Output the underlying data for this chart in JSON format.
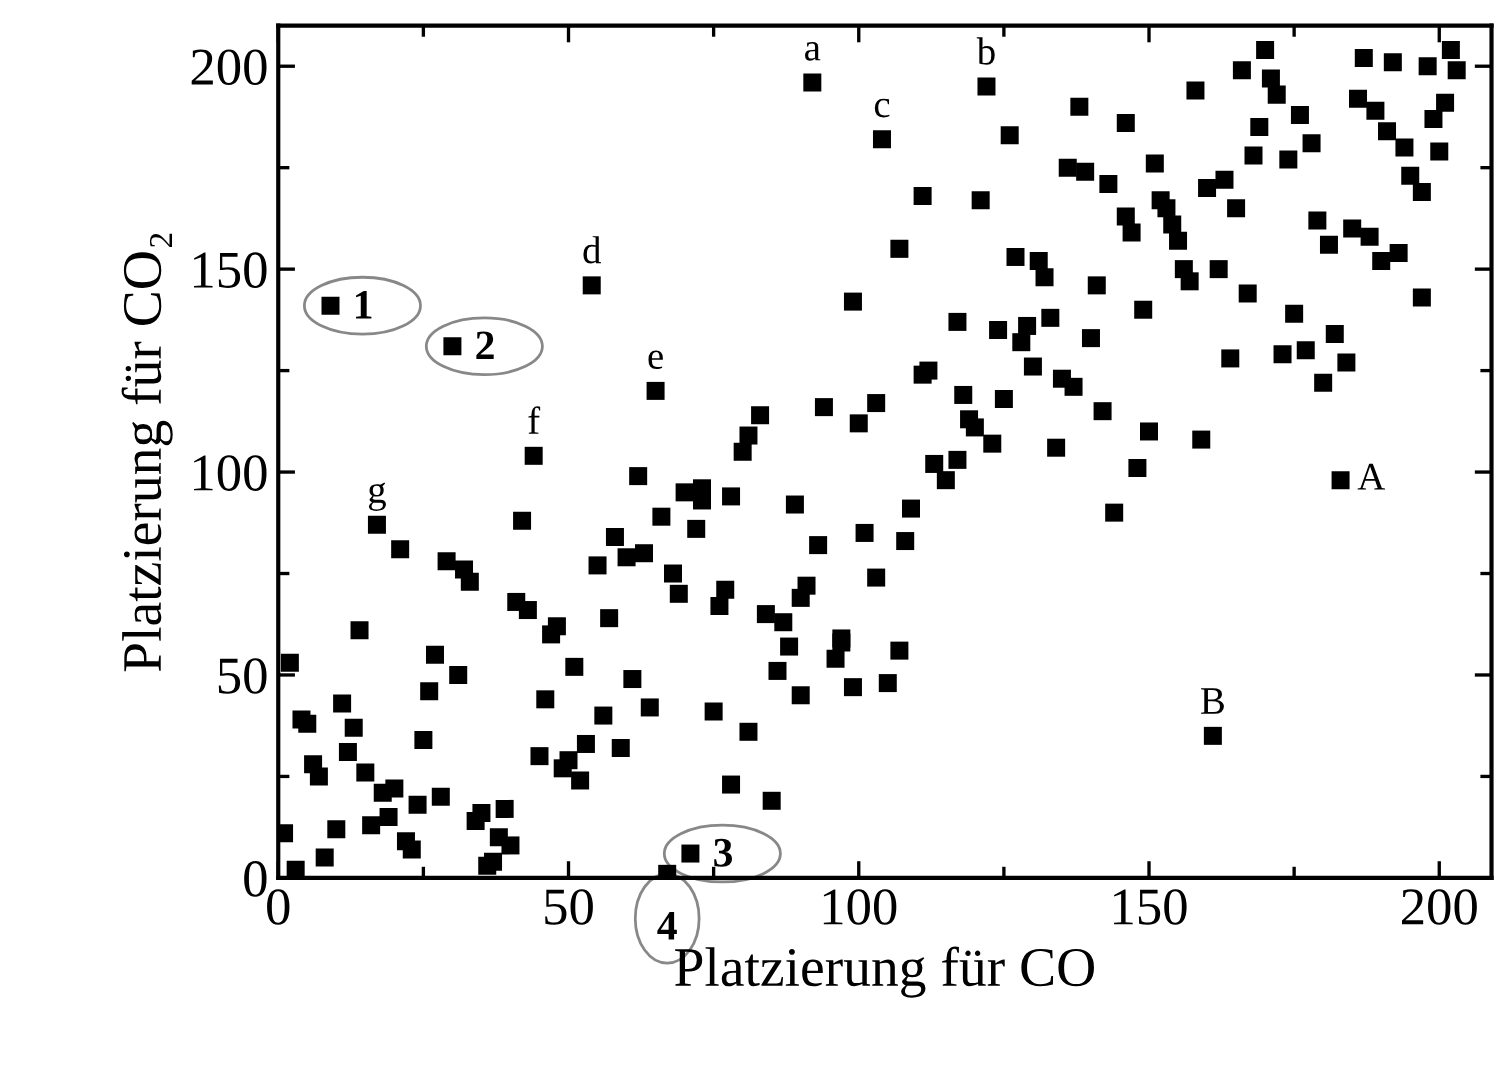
{
  "chart_data": {
    "type": "scatter",
    "xlabel": "Platzierung für CO",
    "ylabel": "Platzierung für CO₂",
    "xlim": [
      0,
      209
    ],
    "ylim": [
      0,
      210
    ],
    "xticks": [
      0,
      {
        "value": 25,
        "label": null
      },
      50,
      {
        "value": 75,
        "label": null
      },
      100,
      {
        "value": 125,
        "label": null
      },
      150,
      {
        "value": 175,
        "label": null
      },
      200
    ],
    "yticks": [
      0,
      {
        "value": 25,
        "label": null
      },
      50,
      {
        "value": 75,
        "label": null
      },
      100,
      {
        "value": 125,
        "label": null
      },
      150,
      {
        "value": 175,
        "label": null
      },
      200
    ],
    "grid": false,
    "marker": "square",
    "series": [
      {
        "color": "#000000",
        "x": [
          9,
          30,
          54,
          92,
          65,
          44,
          99,
          94,
          83,
          81,
          80,
          62,
          100,
          17,
          21,
          29,
          32,
          33,
          14,
          2,
          4,
          5,
          11,
          13,
          12,
          6,
          7,
          15,
          18,
          20,
          16,
          19,
          10,
          8,
          1,
          3,
          22,
          23,
          24,
          28,
          25,
          26,
          27,
          31,
          34,
          35,
          39,
          38,
          40,
          36,
          37,
          42,
          41,
          43,
          47,
          48,
          46,
          45,
          49,
          50,
          51,
          52,
          53,
          55,
          58,
          57,
          60,
          63,
          56,
          59,
          61,
          64,
          66,
          70,
          73,
          73,
          72,
          68,
          69,
          76,
          77,
          78,
          75,
          81,
          78,
          85,
          67,
          71,
          84,
          87,
          88,
          86,
          89,
          93,
          90,
          91,
          90,
          96,
          97,
          97,
          99,
          104,
          122,
          126,
          111,
          121,
          107,
          138,
          146,
          158,
          166,
          170,
          171,
          172,
          169,
          176,
          178,
          168,
          174,
          187,
          192,
          198,
          202,
          203,
          201,
          199,
          186,
          189,
          191,
          194,
          200,
          195,
          197,
          136,
          139,
          143,
          151,
          160,
          163,
          165,
          152,
          153,
          154,
          155,
          146,
          147,
          179,
          181,
          185,
          188,
          193,
          190,
          197,
          156,
          157,
          162,
          167,
          175,
          182,
          177,
          173,
          184,
          180,
          164,
          149,
          141,
          127,
          131,
          132,
          117,
          124,
          129,
          128,
          133,
          140,
          130,
          135,
          137,
          111,
          112,
          142,
          150,
          159,
          118,
          125,
          119,
          120,
          123,
          103,
          134,
          148,
          113,
          117,
          115,
          183,
          144,
          109,
          101,
          108,
          103,
          107,
          105,
          161
        ],
        "values": [
          141,
          131,
          146,
          196,
          120,
          104,
          142,
          116,
          114,
          109,
          105,
          99,
          112,
          87,
          81,
          78,
          76,
          73,
          61,
          53,
          39,
          38,
          43,
          37,
          31,
          28,
          25,
          26,
          21,
          22,
          13,
          15,
          12,
          5,
          11,
          2,
          9,
          7,
          18,
          20,
          34,
          46,
          55,
          50,
          14,
          16,
          17,
          10,
          8,
          3,
          4,
          88,
          68,
          66,
          60,
          62,
          44,
          30,
          27,
          29,
          52,
          24,
          33,
          77,
          84,
          64,
          79,
          80,
          40,
          32,
          49,
          42,
          89,
          95,
          96,
          93,
          86,
          75,
          70,
          67,
          71,
          94,
          41,
          36,
          23,
          19,
          1,
          6,
          65,
          63,
          57,
          51,
          92,
          82,
          69,
          72,
          45,
          54,
          59,
          58,
          47,
          182,
          195,
          183,
          168,
          167,
          155,
          190,
          186,
          194,
          199,
          204,
          197,
          193,
          185,
          188,
          181,
          178,
          177,
          202,
          201,
          200,
          204,
          199,
          191,
          187,
          192,
          189,
          184,
          180,
          179,
          173,
          169,
          175,
          174,
          171,
          176,
          170,
          172,
          165,
          167,
          165,
          161,
          157,
          163,
          159,
          162,
          156,
          160,
          158,
          154,
          152,
          143,
          150,
          147,
          150,
          144,
          139,
          134,
          130,
          129,
          127,
          122,
          128,
          140,
          146,
          153,
          152,
          148,
          137,
          135,
          136,
          132,
          138,
          133,
          126,
          123,
          121,
          124,
          125,
          115,
          110,
          108,
          119,
          118,
          113,
          111,
          107,
          117,
          106,
          101,
          102,
          103,
          98,
          98,
          90,
          91,
          85,
          83,
          74,
          56,
          48,
          35
        ]
      }
    ],
    "annotations": [
      {
        "text": "a",
        "x": 92,
        "y": 196
      },
      {
        "text": "b",
        "x": 122,
        "y": 195
      },
      {
        "text": "c",
        "x": 104,
        "y": 182
      },
      {
        "text": "d",
        "x": 54,
        "y": 146
      },
      {
        "text": "e",
        "x": 65,
        "y": 120
      },
      {
        "text": "f",
        "x": 44,
        "y": 104
      },
      {
        "text": "g",
        "x": 17,
        "y": 87
      },
      {
        "text": "A",
        "x": 183,
        "y": 98
      },
      {
        "text": "B",
        "x": 161,
        "y": 35
      },
      {
        "text": "1",
        "x": 9,
        "y": 141
      },
      {
        "text": "2",
        "x": 30,
        "y": 131
      },
      {
        "text": "3",
        "x": 71,
        "y": 6
      },
      {
        "text": "4",
        "x": 67,
        "y": 1
      }
    ]
  }
}
